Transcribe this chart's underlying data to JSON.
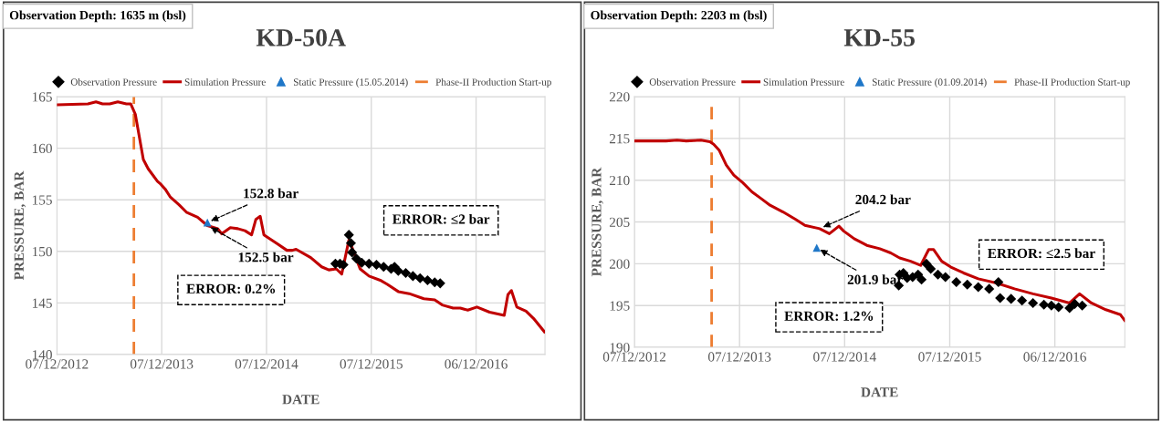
{
  "chart_data": [
    {
      "type": "line",
      "title": "KD-50A",
      "xlabel": "DATE",
      "ylabel": "PRESSURE, BAR",
      "xlim": [
        "2012-12-07",
        "2017-08-03"
      ],
      "ylim": [
        140,
        165
      ],
      "xticks": [
        {
          "value": "2012-12-07",
          "label": "07/12/2012"
        },
        {
          "value": "2013-12-07",
          "label": "07/12/2013"
        },
        {
          "value": "2014-12-07",
          "label": "07/12/2014"
        },
        {
          "value": "2015-12-07",
          "label": "07/12/2015"
        },
        {
          "value": "2016-12-06",
          "label": "06/12/2016"
        }
      ],
      "yticks": [
        140,
        145,
        150,
        155,
        160,
        165
      ],
      "grid": true,
      "legend": "top",
      "series": [
        {
          "name": "Observation Pressure",
          "type": "scatter",
          "marker": "diamond",
          "color": "#000000",
          "x": [
            "2015-08-04",
            "2015-08-20",
            "2015-09-01",
            "2015-09-14",
            "2015-09-20",
            "2015-09-27",
            "2015-10-01",
            "2015-10-16",
            "2015-11-04",
            "2015-11-29",
            "2015-12-25",
            "2016-01-19",
            "2016-02-14",
            "2016-02-26",
            "2016-03-10",
            "2016-04-05",
            "2016-04-30",
            "2016-05-25",
            "2016-06-20",
            "2016-07-15",
            "2016-08-03"
          ],
          "values": [
            148.8,
            148.8,
            148.7,
            null,
            151.6,
            150.8,
            149.9,
            149.3,
            148.9,
            148.8,
            148.7,
            148.5,
            148.3,
            148.5,
            148.1,
            147.9,
            147.6,
            147.4,
            147.2,
            147.0,
            146.9
          ]
        },
        {
          "name": "Simulation Pressure",
          "type": "line",
          "marker": "none",
          "line_style": "solid",
          "color": "#c00000",
          "x": [
            "2012-12-07",
            "2013-03-25",
            "2013-04-22",
            "2013-05-15",
            "2013-06-09",
            "2013-07-07",
            "2013-08-06",
            "2013-08-21",
            "2013-09-06",
            "2013-10-04",
            "2013-10-21",
            "2013-11-22",
            "2013-12-04",
            "2013-12-20",
            "2014-01-05",
            "2014-02-06",
            "2014-03-03",
            "2014-04-11",
            "2014-05-15",
            "2014-06-20",
            "2014-07-04",
            "2014-08-03",
            "2014-08-29",
            "2014-09-23",
            "2014-10-16",
            "2014-10-31",
            "2014-11-15",
            "2014-11-28",
            "2015-01-15",
            "2015-02-16",
            "2015-03-07",
            "2015-03-20",
            "2015-05-10",
            "2015-06-17",
            "2015-07-12",
            "2015-08-07",
            "2015-08-26",
            "2015-09-20",
            "2015-09-29",
            "2015-10-29",
            "2015-11-29",
            "2016-01-07",
            "2016-02-01",
            "2016-03-10",
            "2016-04-17",
            "2016-06-07",
            "2016-07-15",
            "2016-08-10",
            "2016-09-17",
            "2016-10-12",
            "2016-11-07",
            "2016-12-09",
            "2017-01-22",
            "2017-03-14",
            "2017-03-27",
            "2017-04-08",
            "2017-04-27",
            "2017-05-29",
            "2017-06-24",
            "2017-08-01"
          ],
          "values": [
            164.2,
            164.3,
            164.5,
            164.3,
            164.3,
            164.5,
            164.3,
            164.3,
            163.3,
            158.9,
            158.0,
            156.8,
            156.5,
            156.0,
            155.3,
            154.5,
            153.8,
            153.3,
            152.5,
            152.2,
            151.7,
            152.3,
            152.2,
            152.0,
            151.6,
            153.1,
            153.4,
            151.6,
            150.7,
            150.1,
            150.1,
            150.2,
            149.4,
            148.5,
            148.2,
            148.3,
            147.8,
            151.1,
            150.5,
            148.3,
            147.6,
            147.2,
            146.8,
            146.1,
            145.9,
            145.4,
            145.3,
            144.8,
            144.5,
            144.5,
            144.3,
            144.6,
            144.1,
            143.8,
            145.8,
            146.2,
            144.6,
            144.2,
            143.5,
            142.2
          ]
        },
        {
          "name": "Static Pressure (15.05.2014)",
          "type": "scatter",
          "marker": "triangle",
          "color": "#1f77c8",
          "x": [
            "2014-05-15"
          ],
          "values": [
            152.8
          ]
        }
      ],
      "ref_lines": [
        {
          "axis": "x",
          "value": "2013-09-01",
          "label": "Phase-II Production Start-up",
          "color": "#ed7d31",
          "line_style": "dashed"
        }
      ],
      "annotations": [
        "Observation Depth: 1635 m (bsl)",
        {
          "text": "152.8 bar",
          "x": "2014-05-15",
          "y": 152.8
        },
        {
          "text": "152.5 bar",
          "x": "2014-05-15",
          "y": 152.5
        },
        "ERROR: 0.2%",
        "ERROR: ≤2 bar"
      ]
    },
    {
      "type": "line",
      "title": "KD-55",
      "xlabel": "DATE",
      "ylabel": "PRESSURE, BAR",
      "xlim": [
        "2012-12-07",
        "2017-08-06"
      ],
      "ylim": [
        190,
        220
      ],
      "xticks": [
        {
          "value": "2012-12-07",
          "label": "07/12/2012"
        },
        {
          "value": "2013-12-07",
          "label": "07/12/2013"
        },
        {
          "value": "2014-12-07",
          "label": "07/12/2014"
        },
        {
          "value": "2015-12-07",
          "label": "07/12/2015"
        },
        {
          "value": "2016-12-06",
          "label": "06/12/2016"
        }
      ],
      "yticks": [
        190,
        195,
        200,
        205,
        210,
        215,
        220
      ],
      "grid": true,
      "legend": "top",
      "series": [
        {
          "name": "Observation Pressure",
          "type": "scatter",
          "marker": "diamond",
          "color": "#000000",
          "x": [
            "2015-06-13",
            "2015-06-16",
            "2015-06-29",
            "2015-07-12",
            "2015-07-31",
            "2015-08-19",
            "2015-08-31",
            "2015-09-17",
            "2015-10-02",
            "2015-10-27",
            "2015-11-22",
            "2015-12-30",
            "2016-02-06",
            "2016-03-15",
            "2016-04-22",
            "2016-05-24",
            "2016-05-30",
            "2016-07-07",
            "2016-08-14",
            "2016-09-21",
            "2016-10-29",
            "2016-11-24",
            "2016-12-19",
            "2017-01-26",
            "2017-02-13",
            "2017-03-11"
          ],
          "values": [
            197.4,
            198.7,
            198.9,
            198.3,
            198.4,
            198.7,
            198.1,
            200.0,
            199.4,
            198.7,
            198.4,
            197.8,
            197.5,
            197.2,
            197.0,
            197.8,
            195.9,
            195.8,
            195.6,
            195.3,
            195.1,
            195.0,
            194.8,
            194.7,
            195.2,
            195.0
          ]
        },
        {
          "name": "Simulation Pressure",
          "type": "line",
          "marker": "none",
          "line_style": "solid",
          "color": "#c00000",
          "x": [
            "2012-12-07",
            "2013-03-27",
            "2013-05-04",
            "2013-06-05",
            "2013-07-26",
            "2013-08-26",
            "2013-09-08",
            "2013-09-27",
            "2013-10-22",
            "2013-11-17",
            "2013-12-18",
            "2014-01-19",
            "2014-02-20",
            "2014-03-23",
            "2014-05-07",
            "2014-06-20",
            "2014-07-22",
            "2014-09-11",
            "2014-10-15",
            "2014-11-17",
            "2014-12-04",
            "2015-01-09",
            "2015-02-22",
            "2015-04-08",
            "2015-05-16",
            "2015-06-16",
            "2015-07-24",
            "2015-08-28",
            "2015-09-25",
            "2015-10-12",
            "2015-11-09",
            "2015-12-11",
            "2016-01-24",
            "2016-03-15",
            "2016-05-17",
            "2016-07-19",
            "2016-09-21",
            "2016-11-24",
            "2017-01-26",
            "2017-03-02",
            "2017-04-12",
            "2017-06-01",
            "2017-07-22",
            "2017-08-06"
          ],
          "values": [
            214.7,
            214.7,
            214.8,
            214.7,
            214.8,
            214.6,
            214.3,
            213.6,
            211.8,
            210.6,
            209.7,
            208.6,
            207.8,
            207.0,
            206.2,
            205.3,
            204.6,
            204.2,
            203.6,
            204.5,
            203.9,
            203.0,
            202.2,
            201.8,
            201.3,
            200.7,
            200.3,
            199.8,
            201.7,
            201.7,
            200.3,
            199.6,
            198.9,
            198.2,
            197.7,
            197.0,
            196.4,
            195.9,
            195.3,
            196.4,
            195.3,
            194.5,
            193.9,
            193.2
          ]
        },
        {
          "name": "Static Pressure (01.09.2014)",
          "type": "scatter",
          "marker": "triangle",
          "color": "#1f77c8",
          "x": [
            "2014-09-01"
          ],
          "values": [
            201.9
          ]
        }
      ],
      "ref_lines": [
        {
          "axis": "x",
          "value": "2013-09-01",
          "label": "Phase-II Production Start-up",
          "color": "#ed7d31",
          "line_style": "dashed"
        }
      ],
      "annotations": [
        "Observation Depth: 2203 m (bsl)",
        {
          "text": "204.2 bar",
          "x": "2014-09-11",
          "y": 204.2
        },
        {
          "text": "201.9 bar",
          "x": "2014-09-01",
          "y": 201.9
        },
        "ERROR: 1.2%",
        "ERROR: ≤2.5 bar"
      ]
    }
  ]
}
